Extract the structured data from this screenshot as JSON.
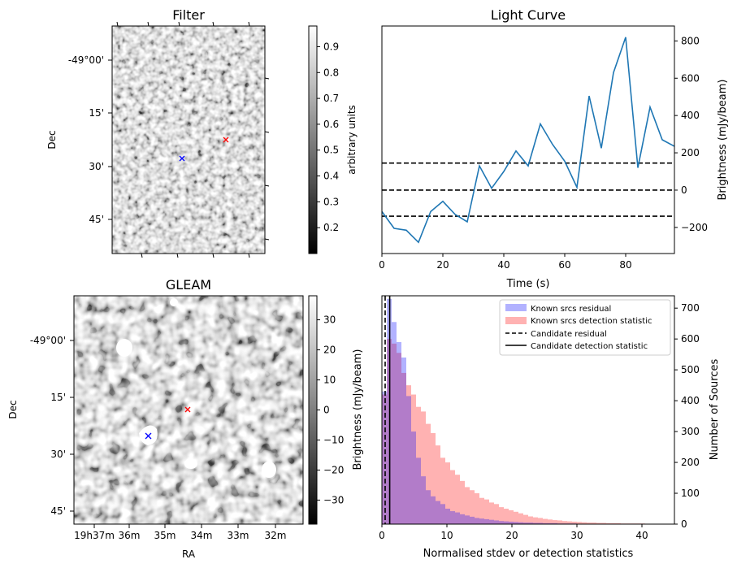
{
  "chart_data": [
    {
      "panel": "filter-image",
      "type": "heatmap",
      "title": "Filter",
      "ylabel": "Dec",
      "ytick_labels": [
        "-49°00'",
        "15'",
        "30'",
        "45'"
      ],
      "colorbar": {
        "label": "arbitrary units",
        "range": [
          0.1,
          0.98
        ],
        "ticks": [
          0.2,
          0.3,
          0.4,
          0.5,
          0.6,
          0.7,
          0.8,
          0.9
        ],
        "tick_labels": [
          "0.2",
          "0.3",
          "0.4",
          "0.5",
          "0.6",
          "0.7",
          "0.8",
          "0.9"
        ]
      },
      "markers": [
        {
          "name": "candidate",
          "color": "#ff0000",
          "symbol": "x"
        },
        {
          "name": "reference",
          "color": "#0000ff",
          "symbol": "x"
        }
      ]
    },
    {
      "panel": "light-curve",
      "type": "line",
      "title": "Light Curve",
      "xlabel": "Time (s)",
      "ylabel": "Brightness (mJy/beam)",
      "xlim": [
        0,
        96
      ],
      "ylim": [
        -340,
        880
      ],
      "x_ticks": [
        0,
        20,
        40,
        60,
        80
      ],
      "x_tick_labels": [
        "0",
        "20",
        "40",
        "60",
        "80"
      ],
      "y_ticks": [
        -200,
        0,
        200,
        400,
        600,
        800
      ],
      "y_tick_labels": [
        "−200",
        "0",
        "200",
        "400",
        "600",
        "800"
      ],
      "x": [
        0,
        4,
        8,
        12,
        16,
        20,
        24,
        28,
        32,
        36,
        40,
        44,
        48,
        52,
        56,
        60,
        64,
        68,
        72,
        76,
        80,
        84,
        88,
        92,
        96
      ],
      "values": [
        -115,
        -205,
        -215,
        -280,
        -115,
        -60,
        -130,
        -170,
        130,
        10,
        100,
        210,
        130,
        355,
        245,
        155,
        15,
        505,
        225,
        630,
        820,
        120,
        445,
        270,
        235
      ],
      "series_color": "#1f77b4",
      "reference_lines": [
        145,
        0,
        -140
      ]
    },
    {
      "panel": "gleam-image",
      "type": "heatmap",
      "title": "GLEAM",
      "xlabel": "RA",
      "ylabel": "Dec",
      "xtick_labels": [
        "19h37m",
        "36m",
        "35m",
        "34m",
        "33m",
        "32m"
      ],
      "ytick_labels": [
        "-49°00'",
        "15'",
        "30'",
        "45'"
      ],
      "colorbar": {
        "label": "Brightness (mJy/beam)",
        "range": [
          -38,
          38
        ],
        "ticks": [
          30,
          20,
          10,
          0,
          -10,
          -20,
          -30
        ],
        "tick_labels": [
          "30",
          "20",
          "10",
          "0",
          "−10",
          "−20",
          "−30"
        ]
      },
      "markers": [
        {
          "name": "candidate",
          "color": "#ff0000",
          "symbol": "x"
        },
        {
          "name": "reference",
          "color": "#0000ff",
          "symbol": "x"
        }
      ]
    },
    {
      "panel": "histogram",
      "type": "bar",
      "xlabel": "Normalised stdev or detection statistics",
      "ylabel": "Number of Sources",
      "xlim": [
        0,
        45
      ],
      "ylim": [
        0,
        740
      ],
      "x_ticks": [
        0,
        10,
        20,
        30,
        40
      ],
      "x_tick_labels": [
        "0",
        "10",
        "20",
        "30",
        "40"
      ],
      "y_ticks": [
        0,
        100,
        200,
        300,
        400,
        500,
        600,
        700
      ],
      "y_tick_labels": [
        "0",
        "100",
        "200",
        "300",
        "400",
        "500",
        "600",
        "700"
      ],
      "bin_width": 0.75,
      "series": [
        {
          "name": "Known srcs residual",
          "color": "#0000ff",
          "alpha": 0.3,
          "values": [
            430,
            730,
            655,
            590,
            540,
            415,
            300,
            215,
            155,
            110,
            90,
            75,
            65,
            50,
            42,
            38,
            32,
            28,
            24,
            20,
            18,
            16,
            14,
            12,
            10,
            9,
            8,
            7,
            6,
            5,
            5,
            4,
            4,
            3,
            3,
            3,
            2,
            2,
            2,
            2,
            1,
            1,
            1,
            1,
            1
          ]
        },
        {
          "name": "Known srcs detection statistic",
          "color": "#ff0000",
          "alpha": 0.3,
          "values": [
            420,
            600,
            585,
            555,
            490,
            450,
            420,
            380,
            365,
            325,
            295,
            255,
            215,
            200,
            175,
            160,
            140,
            120,
            110,
            100,
            85,
            80,
            70,
            65,
            55,
            50,
            45,
            40,
            35,
            30,
            25,
            22,
            20,
            17,
            15,
            13,
            12,
            10,
            9,
            8,
            7,
            6,
            5,
            5,
            4,
            4,
            3,
            3,
            3,
            2,
            2,
            2,
            2,
            2,
            1,
            1,
            1,
            1,
            1,
            1
          ]
        }
      ],
      "vlines": [
        {
          "name": "Candidate residual",
          "x": 0.5,
          "style": "dashed"
        },
        {
          "name": "Candidate detection statistic",
          "x": 1.2,
          "style": "solid"
        }
      ],
      "legend": {
        "placement": "top-right",
        "entries": [
          "Known srcs residual",
          "Known srcs detection statistic",
          "Candidate residual",
          "Candidate detection statistic"
        ]
      }
    }
  ]
}
